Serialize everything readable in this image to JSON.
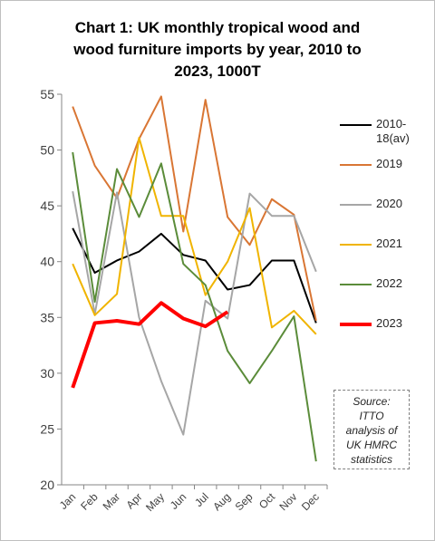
{
  "chart_data": {
    "type": "line",
    "title": [
      "Chart 1: UK monthly tropical wood and",
      "wood furniture imports by year, 2010 to",
      "2023, 1000T"
    ],
    "categories": [
      "Jan",
      "Feb",
      "Mar",
      "Apr",
      "May",
      "Jun",
      "Jul",
      "Aug",
      "Sep",
      "Oct",
      "Nov",
      "Dec"
    ],
    "series": [
      {
        "name": "2010-18(av)",
        "color": "#000000",
        "values": [
          43,
          39,
          40.1,
          40.9,
          42.5,
          40.6,
          40.1,
          37.5,
          37.9,
          40.1,
          40.1,
          34.5
        ]
      },
      {
        "name": "2019",
        "color": "#d97634",
        "values": [
          53.9,
          48.6,
          45.7,
          51,
          54.8,
          42.7,
          54.5,
          44,
          41.5,
          45.6,
          44.2,
          34.7
        ]
      },
      {
        "name": "2020",
        "color": "#a6a6a6",
        "values": [
          46.3,
          35.3,
          46.2,
          35,
          29.3,
          24.5,
          36.5,
          34.9,
          46.1,
          44.1,
          44.1,
          39.1
        ]
      },
      {
        "name": "2021",
        "color": "#f0b400",
        "values": [
          39.8,
          35.2,
          37.1,
          51.1,
          44.1,
          44.1,
          37,
          40,
          44.8,
          34.1,
          35.6,
          33.5
        ]
      },
      {
        "name": "2022",
        "color": "#5b8c3a",
        "values": [
          49.8,
          36.4,
          48.3,
          44,
          48.8,
          39.8,
          37.9,
          32,
          29.1,
          32,
          35.1,
          22.1
        ]
      },
      {
        "name": "2023",
        "color": "#ff0000",
        "values": [
          28.7,
          34.5,
          34.7,
          34.4,
          36.3,
          34.9,
          34.2,
          35.5,
          null,
          null,
          null,
          null
        ]
      }
    ],
    "ylim": [
      20,
      55
    ],
    "yticks": [
      20,
      25,
      30,
      35,
      40,
      45,
      50,
      55
    ],
    "source": [
      "Source:",
      "ITTO",
      "analysis of",
      "UK HMRC",
      "statistics"
    ]
  }
}
